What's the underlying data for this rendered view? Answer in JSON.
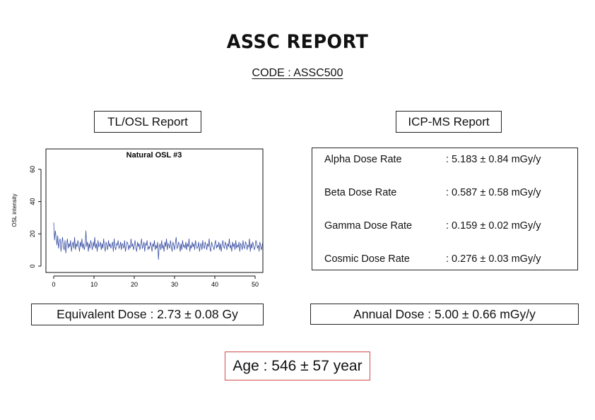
{
  "report": {
    "title": "ASSC REPORT",
    "code": "CODE : ASSC500"
  },
  "tl_osl": {
    "header": "TL/OSL Report",
    "equivalent_dose": "Equivalent Dose : 2.73 ± 0.08 Gy"
  },
  "icp_ms": {
    "header": "ICP-MS Report",
    "rows": [
      {
        "label": "Alpha Dose Rate",
        "value": ": 5.183 ± 0.84 mGy/y"
      },
      {
        "label": "Beta Dose Rate",
        "value": ": 0.587 ± 0.58 mGy/y"
      },
      {
        "label": "Gamma Dose Rate",
        "value": ": 0.159 ± 0.02 mGy/y"
      },
      {
        "label": "Cosmic Dose Rate",
        "value": ": 0.276 ± 0.03 mGy/y"
      }
    ],
    "annual_dose": "Annual Dose : 5.00 ± 0.66 mGy/y"
  },
  "age": "Age : 546 ± 57 year",
  "colors": {
    "series": "#3a4fa3",
    "age_border": "#d44a4a"
  },
  "chart_data": {
    "type": "line",
    "title": "Natural OSL #3",
    "xlabel": "",
    "ylabel": "OSL intensity",
    "xlim": [
      0,
      50
    ],
    "ylim": [
      0,
      70
    ],
    "xticks": [
      0,
      10,
      20,
      30,
      40,
      50
    ],
    "yticks": [
      0,
      20,
      40,
      60
    ],
    "grid": false,
    "series": [
      {
        "x_start": 0,
        "x_step": 0.2,
        "values": [
          27,
          16,
          22,
          18,
          13,
          19,
          11,
          15,
          17,
          9,
          14,
          18,
          12,
          10,
          16,
          8,
          13,
          17,
          11,
          14,
          12,
          16,
          9,
          13,
          15,
          11,
          18,
          10,
          14,
          12,
          16,
          13,
          9,
          15,
          12,
          17,
          11,
          14,
          10,
          13,
          22,
          12,
          15,
          9,
          14,
          11,
          16,
          13,
          10,
          15,
          12,
          18,
          11,
          14,
          9,
          16,
          12,
          13,
          15,
          10,
          14,
          11,
          17,
          12,
          9,
          15,
          13,
          10,
          16,
          12,
          14,
          11,
          13,
          15,
          9,
          17,
          12,
          10,
          14,
          13,
          16,
          11,
          12,
          15,
          10,
          14,
          13,
          11,
          16,
          9,
          12,
          15,
          14,
          10,
          13,
          11,
          17,
          12,
          14,
          10,
          13,
          16,
          11,
          9,
          15,
          12,
          14,
          10,
          13,
          17,
          11,
          12,
          15,
          9,
          14,
          13,
          16,
          10,
          12,
          11,
          15,
          13,
          9,
          14,
          12,
          16,
          10,
          13,
          11,
          15,
          4,
          12,
          14,
          10,
          16,
          11,
          13,
          9,
          15,
          12,
          17,
          10,
          14,
          13,
          11,
          16,
          12,
          9,
          15,
          13,
          10,
          14,
          18,
          11,
          12,
          15,
          13,
          9,
          14,
          10,
          16,
          12,
          13,
          11,
          15,
          10,
          14,
          12,
          17,
          9,
          13,
          11,
          15,
          12,
          14,
          10,
          16,
          13,
          11,
          12,
          15,
          9,
          13,
          14,
          10,
          16,
          12,
          11,
          15,
          13,
          10,
          14,
          12,
          17,
          11,
          9,
          15,
          13,
          12,
          10,
          14,
          16,
          11,
          13,
          12,
          15,
          10,
          14,
          9,
          13,
          16,
          12,
          11,
          15,
          13,
          10,
          14,
          12,
          17,
          11,
          13,
          9,
          15,
          12,
          14,
          10,
          16,
          11,
          13,
          12,
          15,
          9,
          14,
          13,
          10,
          16,
          12,
          11,
          15,
          14,
          10,
          13,
          12,
          17,
          9,
          14,
          11,
          15,
          13,
          10,
          12,
          16,
          14,
          11,
          13,
          9,
          15,
          12,
          10,
          14
        ]
      }
    ]
  }
}
